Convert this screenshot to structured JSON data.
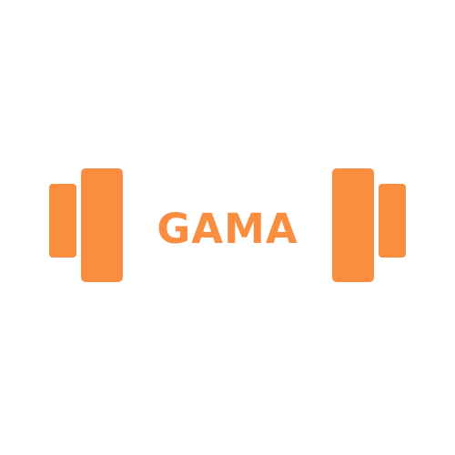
{
  "logo": {
    "text": "GAMA",
    "icon": "dumbbell-icon",
    "color": "#F98E41",
    "background": "#FFFFFF"
  }
}
